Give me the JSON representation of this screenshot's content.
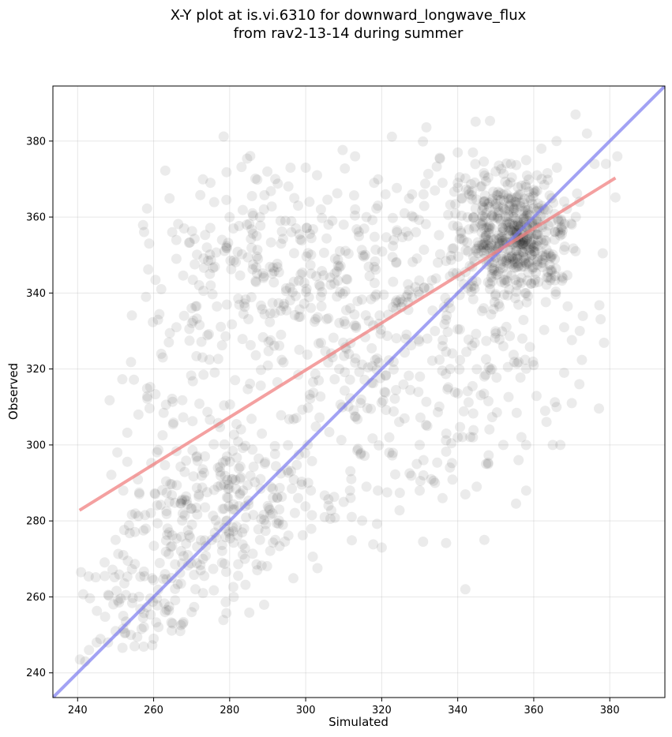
{
  "chart_data": {
    "type": "scatter",
    "title": "X-Y plot at is.vi.6310 for downward_longwave_flux",
    "subtitle": "from rav2-13-14 during summer",
    "xlabel": "Simulated",
    "ylabel": "Observed",
    "xlim": [
      233.5,
      394.5
    ],
    "ylim": [
      233.5,
      394.5
    ],
    "xticks": [
      240,
      260,
      280,
      300,
      320,
      340,
      360,
      380
    ],
    "yticks": [
      240,
      260,
      280,
      300,
      320,
      340,
      360,
      380
    ],
    "grid": true,
    "regression_line": {
      "color": "#f08080",
      "x": [
        240.5,
        381.5
      ],
      "y": [
        282.8,
        370.3
      ]
    },
    "identity_line": {
      "color": "#7b7bf0",
      "x": [
        233.5,
        394.5
      ],
      "y": [
        233.5,
        394.5
      ]
    },
    "marker_color": "#000000",
    "clusters": [
      {
        "cx": 355,
        "cy": 355,
        "sx": 7,
        "sy": 8,
        "n": 500
      },
      {
        "cx": 345,
        "cy": 335,
        "sx": 12,
        "sy": 22,
        "n": 140
      },
      {
        "cx": 325,
        "cy": 345,
        "sx": 10,
        "sy": 12,
        "n": 60
      },
      {
        "cx": 290,
        "cy": 345,
        "sx": 15,
        "sy": 12,
        "n": 220
      },
      {
        "cx": 305,
        "cy": 320,
        "sx": 15,
        "sy": 18,
        "n": 150
      },
      {
        "cx": 278,
        "cy": 283,
        "sx": 12,
        "sy": 12,
        "n": 220
      },
      {
        "cx": 265,
        "cy": 300,
        "sx": 8,
        "sy": 18,
        "n": 70
      },
      {
        "cx": 257,
        "cy": 262,
        "sx": 7,
        "sy": 9,
        "n": 80
      },
      {
        "cx": 325,
        "cy": 305,
        "sx": 12,
        "sy": 14,
        "n": 50
      }
    ],
    "extra_points": [
      [
        242,
        243
      ],
      [
        243,
        246
      ],
      [
        245,
        248
      ],
      [
        248,
        248
      ],
      [
        250,
        251
      ],
      [
        255,
        247
      ],
      [
        252,
        288
      ],
      [
        256,
        308
      ],
      [
        262,
        341
      ],
      [
        258,
        339
      ],
      [
        268,
        357
      ],
      [
        266,
        349
      ],
      [
        273,
        261
      ],
      [
        278,
        269
      ],
      [
        292,
        275
      ],
      [
        320,
        273
      ],
      [
        342,
        262
      ],
      [
        347,
        275
      ],
      [
        342,
        287
      ],
      [
        348,
        295
      ],
      [
        352,
        300
      ],
      [
        356,
        296
      ],
      [
        358,
        300
      ],
      [
        365,
        300
      ],
      [
        358,
        288
      ],
      [
        345,
        289
      ],
      [
        333,
        291
      ],
      [
        330,
        288
      ],
      [
        367,
        300
      ],
      [
        372,
        316
      ],
      [
        370,
        311
      ],
      [
        368,
        319
      ],
      [
        366,
        310
      ],
      [
        363,
        309
      ],
      [
        340,
        377
      ],
      [
        344,
        377
      ],
      [
        313,
        376
      ],
      [
        292,
        370
      ],
      [
        296,
        373
      ],
      [
        300,
        373
      ],
      [
        303,
        371
      ],
      [
        371,
        387
      ],
      [
        374,
        382
      ],
      [
        376,
        374
      ],
      [
        379,
        374
      ],
      [
        382,
        376
      ],
      [
        372,
        364
      ],
      [
        370,
        358
      ],
      [
        371,
        351
      ],
      [
        368,
        331
      ],
      [
        357,
        328
      ],
      [
        360,
        321
      ],
      [
        349,
        320
      ],
      [
        352,
        326
      ],
      [
        252,
        271
      ],
      [
        250,
        275
      ],
      [
        252,
        255
      ],
      [
        254,
        250
      ],
      [
        260,
        249
      ],
      [
        263,
        256
      ],
      [
        267,
        251
      ],
      [
        270,
        256
      ],
      [
        265,
        253
      ],
      [
        271,
        262
      ],
      [
        273,
        270
      ],
      [
        269,
        271
      ],
      [
        284,
        270
      ],
      [
        288,
        275
      ],
      [
        294,
        279
      ],
      [
        298,
        286
      ],
      [
        305,
        281
      ],
      [
        306,
        284
      ],
      [
        310,
        285
      ],
      [
        312,
        291
      ],
      [
        316,
        289
      ],
      [
        319,
        288
      ],
      [
        322,
        298
      ],
      [
        331,
        296
      ],
      [
        334,
        290
      ],
      [
        336,
        286
      ],
      [
        322,
        302
      ],
      [
        326,
        307
      ],
      [
        330,
        300
      ],
      [
        332,
        305
      ],
      [
        337,
        303
      ],
      [
        340,
        302
      ],
      [
        344,
        302
      ],
      [
        347,
        318
      ],
      [
        338,
        320
      ],
      [
        336,
        326
      ],
      [
        334,
        330
      ],
      [
        332,
        328
      ],
      [
        338,
        336
      ],
      [
        349,
        345
      ],
      [
        362,
        378
      ],
      [
        366,
        380
      ],
      [
        358,
        375
      ],
      [
        354,
        374
      ],
      [
        350,
        372
      ],
      [
        346,
        368
      ],
      [
        347,
        364
      ],
      [
        352,
        366
      ],
      [
        264,
        327
      ],
      [
        262,
        324
      ],
      [
        266,
        331
      ],
      [
        270,
        336
      ],
      [
        268,
        334
      ],
      [
        275,
        342
      ],
      [
        274,
        352
      ],
      [
        278,
        354
      ],
      [
        281,
        357
      ],
      [
        280,
        360
      ],
      [
        286,
        361
      ],
      [
        289,
        362
      ],
      [
        288,
        360
      ],
      [
        297,
        365
      ],
      [
        298,
        363
      ],
      [
        301,
        364
      ],
      [
        304,
        362
      ],
      [
        306,
        358
      ],
      [
        309,
        351
      ],
      [
        310,
        358
      ],
      [
        313,
        362
      ],
      [
        316,
        360
      ],
      [
        314,
        355
      ],
      [
        318,
        369
      ],
      [
        321,
        366
      ],
      [
        319,
        363
      ],
      [
        324,
        356
      ],
      [
        327,
        355
      ],
      [
        329,
        356
      ],
      [
        326,
        361
      ],
      [
        328,
        366
      ],
      [
        331,
        366
      ],
      [
        334,
        367
      ],
      [
        336,
        369
      ],
      [
        340,
        369
      ],
      [
        343,
        366
      ]
    ]
  }
}
